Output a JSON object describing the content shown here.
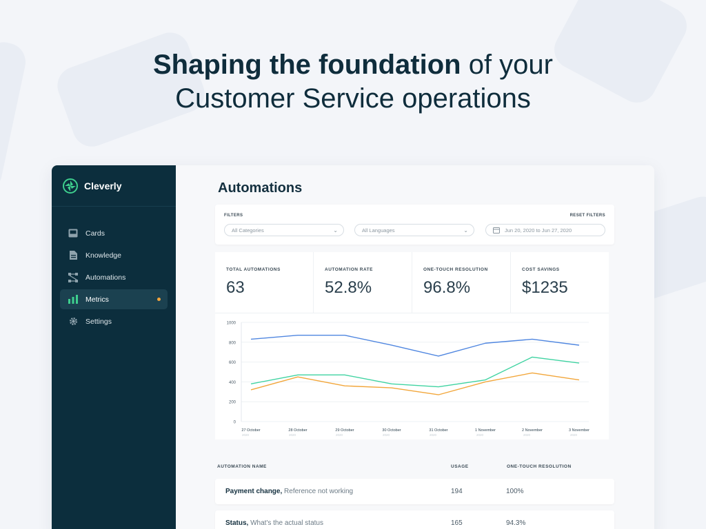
{
  "hero": {
    "bold": "Shaping the foundation",
    "light": " of your",
    "line2": "Customer Service operations"
  },
  "brand": {
    "name": "Cleverly",
    "icon": "cleverly-logo-icon",
    "color": "#3ecf8e"
  },
  "sidebar": {
    "items": [
      {
        "label": "Cards",
        "icon": "inbox-icon"
      },
      {
        "label": "Knowledge",
        "icon": "document-icon"
      },
      {
        "label": "Automations",
        "icon": "flow-icon"
      },
      {
        "label": "Metrics",
        "icon": "bar-chart-icon",
        "active": true
      },
      {
        "label": "Settings",
        "icon": "gear-icon"
      }
    ]
  },
  "page": {
    "title": "Automations"
  },
  "filters": {
    "label": "FILTERS",
    "reset": "RESET FILTERS",
    "category": "All Categories",
    "language": "All Languages",
    "date_range": "Jun 20, 2020 to Jun 27, 2020"
  },
  "stats": [
    {
      "label": "TOTAL AUTOMATIONS",
      "value": "63"
    },
    {
      "label": "AUTOMATION RATE",
      "value": "52.8%"
    },
    {
      "label": "ONE-TOUCH RESOLUTION",
      "value": "96.8%"
    },
    {
      "label": "COST SAVINGS",
      "value": "$1235"
    }
  ],
  "chart_data": {
    "type": "line",
    "categories": [
      "27 October",
      "28 October",
      "29 October",
      "30 October",
      "31 October",
      "1 November",
      "2 November",
      "3 November"
    ],
    "category_sub": "2020",
    "ylim": [
      0,
      1000
    ],
    "yticks": [
      "0",
      "200",
      "400",
      "600",
      "800",
      "1000"
    ],
    "grid": true,
    "series": [
      {
        "color": "#4f86e0",
        "values": [
          830,
          870,
          870,
          770,
          660,
          790,
          830,
          770
        ]
      },
      {
        "color": "#3fd3a1",
        "values": [
          380,
          470,
          470,
          380,
          350,
          420,
          650,
          590
        ]
      },
      {
        "color": "#f2a63a",
        "values": [
          320,
          450,
          360,
          340,
          270,
          400,
          490,
          420
        ]
      }
    ]
  },
  "table": {
    "headers": {
      "name": "AUTOMATION NAME",
      "usage": "USAGE",
      "otr": "ONE-TOUCH RESOLUTION"
    },
    "rows": [
      {
        "title": "Payment change,",
        "desc": " Reference not working",
        "usage": "194",
        "otr": "100%"
      },
      {
        "title": "Status,",
        "desc": " What's the actual status",
        "usage": "165",
        "otr": "94.3%"
      }
    ]
  }
}
